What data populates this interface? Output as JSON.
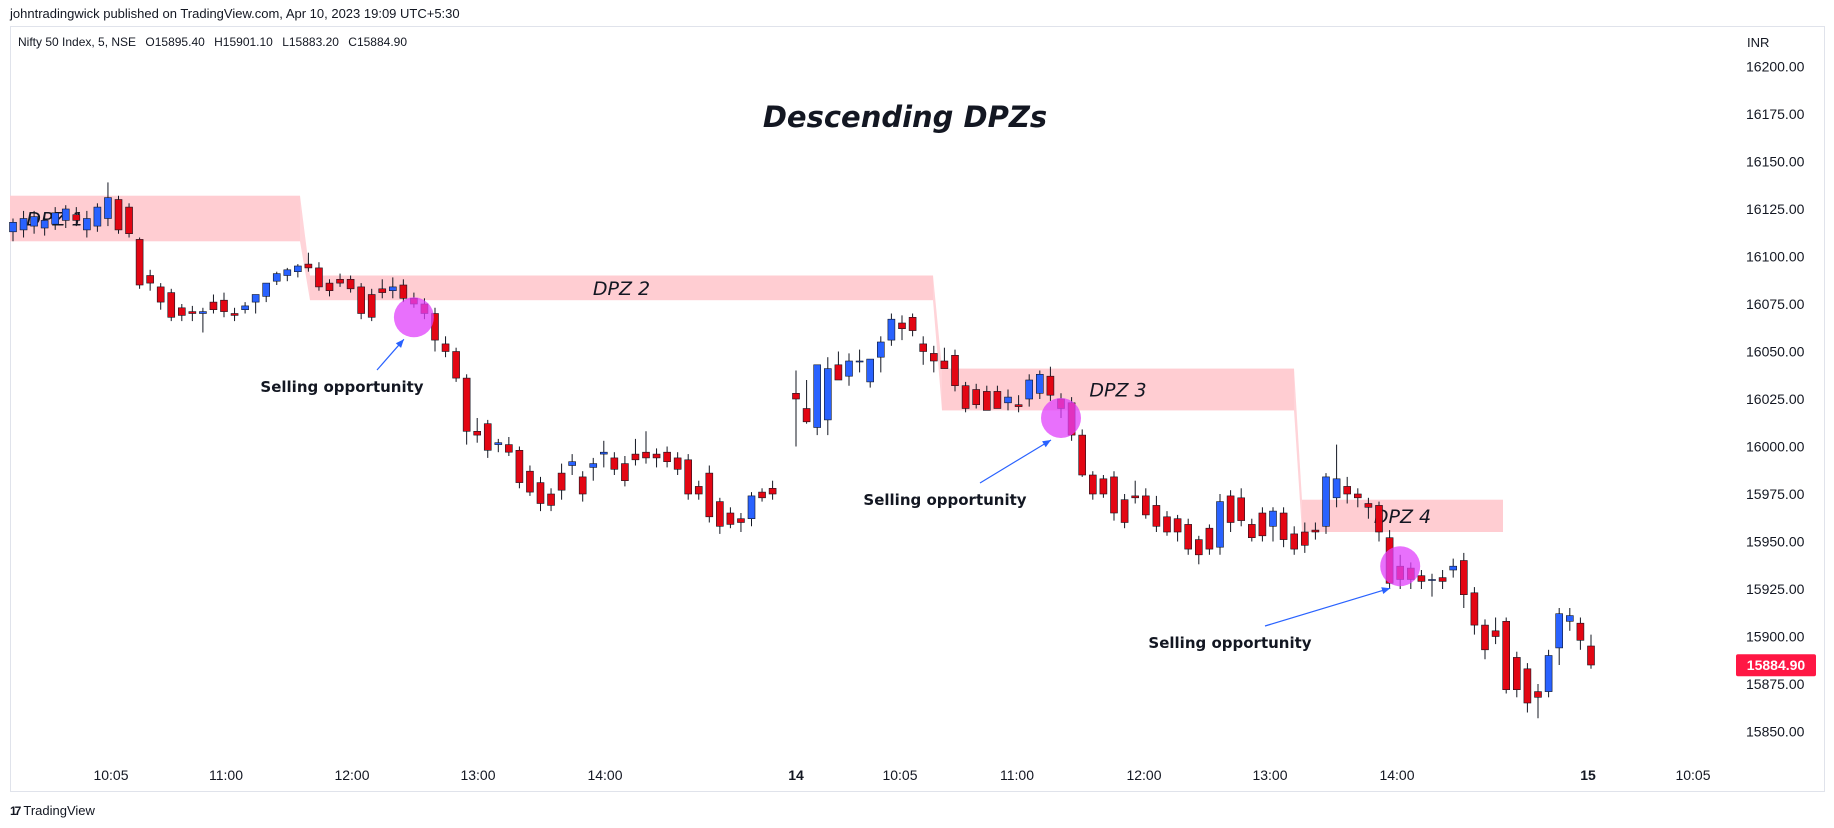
{
  "header": {
    "published": "johntradingwick published on TradingView.com, Apr 10, 2023 19:09 UTC+5:30",
    "symbol": "Nifty 50 Index, 5, NSE",
    "open": "O15895.40",
    "high": "H15901.10",
    "low": "L15883.20",
    "close": "C15884.90"
  },
  "footer": {
    "brand": "TradingView",
    "logo": "17"
  },
  "colors": {
    "up": "#2962ff",
    "down": "#e30613",
    "zone": "#ffcdd2",
    "circle": "#e040fb",
    "arrow": "#2962ff",
    "price_tag": "#ff1744"
  },
  "chart_data": {
    "type": "candlestick",
    "title": "Descending DPZs",
    "currency": "INR",
    "ylim": [
      15835,
      16215
    ],
    "y_ticks": [
      16200,
      16175,
      16150,
      16125,
      16100,
      16075,
      16050,
      16025,
      16000,
      15975,
      15950,
      15925,
      15900,
      15875,
      15850
    ],
    "last_price": "15884.90",
    "x_labels": [
      "10:05",
      "11:00",
      "12:00",
      "13:00",
      "14:00",
      "14",
      "10:05",
      "11:00",
      "12:00",
      "13:00",
      "14:00",
      "15",
      "10:05"
    ],
    "candles": [
      {
        "o": 16113,
        "h": 16120,
        "l": 16108,
        "c": 16118
      },
      {
        "o": 16114,
        "h": 16124,
        "l": 16110,
        "c": 16120
      },
      {
        "o": 16116,
        "h": 16124,
        "l": 16112,
        "c": 16121
      },
      {
        "o": 16115,
        "h": 16123,
        "l": 16111,
        "c": 16119
      },
      {
        "o": 16117,
        "h": 16126,
        "l": 16114,
        "c": 16123
      },
      {
        "o": 16119,
        "h": 16127,
        "l": 16115,
        "c": 16125
      },
      {
        "o": 16122,
        "h": 16126,
        "l": 16116,
        "c": 16119
      },
      {
        "o": 16114,
        "h": 16124,
        "l": 16110,
        "c": 16120
      },
      {
        "o": 16116,
        "h": 16128,
        "l": 16113,
        "c": 16126
      },
      {
        "o": 16120,
        "h": 16139,
        "l": 16116,
        "c": 16131
      },
      {
        "o": 16130,
        "h": 16132,
        "l": 16112,
        "c": 16114
      },
      {
        "o": 16126,
        "h": 16128,
        "l": 16110,
        "c": 16112
      },
      {
        "o": 16109,
        "h": 16110,
        "l": 16083,
        "c": 16085
      },
      {
        "o": 16090,
        "h": 16093,
        "l": 16082,
        "c": 16086
      },
      {
        "o": 16084,
        "h": 16086,
        "l": 16072,
        "c": 16076
      },
      {
        "o": 16081,
        "h": 16083,
        "l": 16066,
        "c": 16068
      },
      {
        "o": 16073,
        "h": 16075,
        "l": 16066,
        "c": 16069
      },
      {
        "o": 16071,
        "h": 16074,
        "l": 16066,
        "c": 16070
      },
      {
        "o": 16070,
        "h": 16073,
        "l": 16060,
        "c": 16071
      },
      {
        "o": 16076,
        "h": 16080,
        "l": 16070,
        "c": 16072
      },
      {
        "o": 16077,
        "h": 16081,
        "l": 16068,
        "c": 16071
      },
      {
        "o": 16070,
        "h": 16073,
        "l": 16066,
        "c": 16069
      },
      {
        "o": 16072,
        "h": 16076,
        "l": 16070,
        "c": 16074
      },
      {
        "o": 16076,
        "h": 16080,
        "l": 16070,
        "c": 16080
      },
      {
        "o": 16079,
        "h": 16086,
        "l": 16076,
        "c": 16086
      },
      {
        "o": 16087,
        "h": 16092,
        "l": 16085,
        "c": 16091
      },
      {
        "o": 16090,
        "h": 16094,
        "l": 16087,
        "c": 16093
      },
      {
        "o": 16092,
        "h": 16096,
        "l": 16089,
        "c": 16095
      },
      {
        "o": 16096,
        "h": 16102,
        "l": 16092,
        "c": 16094
      },
      {
        "o": 16094,
        "h": 16097,
        "l": 16082,
        "c": 16084
      },
      {
        "o": 16086,
        "h": 16088,
        "l": 16079,
        "c": 16082
      },
      {
        "o": 16088,
        "h": 16091,
        "l": 16084,
        "c": 16086
      },
      {
        "o": 16088,
        "h": 16090,
        "l": 16081,
        "c": 16083
      },
      {
        "o": 16084,
        "h": 16086,
        "l": 16067,
        "c": 16070
      },
      {
        "o": 16080,
        "h": 16083,
        "l": 16066,
        "c": 16068
      },
      {
        "o": 16083,
        "h": 16088,
        "l": 16078,
        "c": 16081
      },
      {
        "o": 16082,
        "h": 16089,
        "l": 16078,
        "c": 16084
      },
      {
        "o": 16085,
        "h": 16088,
        "l": 16076,
        "c": 16078
      },
      {
        "o": 16078,
        "h": 16081,
        "l": 16073,
        "c": 16075
      },
      {
        "o": 16075,
        "h": 16078,
        "l": 16067,
        "c": 16070
      },
      {
        "o": 16070,
        "h": 16073,
        "l": 16050,
        "c": 16056
      },
      {
        "o": 16054,
        "h": 16058,
        "l": 16047,
        "c": 16050
      },
      {
        "o": 16050,
        "h": 16052,
        "l": 16034,
        "c": 16036
      },
      {
        "o": 16036,
        "h": 16038,
        "l": 16001,
        "c": 16008
      },
      {
        "o": 16008,
        "h": 16015,
        "l": 16002,
        "c": 16006
      },
      {
        "o": 16012,
        "h": 16014,
        "l": 15994,
        "c": 15998
      },
      {
        "o": 16001,
        "h": 16004,
        "l": 15997,
        "c": 16002
      },
      {
        "o": 16001,
        "h": 16005,
        "l": 15995,
        "c": 15997
      },
      {
        "o": 15998,
        "h": 16000,
        "l": 15978,
        "c": 15981
      },
      {
        "o": 15987,
        "h": 15990,
        "l": 15974,
        "c": 15976
      },
      {
        "o": 15981,
        "h": 15984,
        "l": 15966,
        "c": 15970
      },
      {
        "o": 15975,
        "h": 15978,
        "l": 15966,
        "c": 15969
      },
      {
        "o": 15986,
        "h": 15991,
        "l": 15972,
        "c": 15977
      },
      {
        "o": 15990,
        "h": 15996,
        "l": 15985,
        "c": 15992
      },
      {
        "o": 15984,
        "h": 15987,
        "l": 15971,
        "c": 15975
      },
      {
        "o": 15989,
        "h": 15994,
        "l": 15982,
        "c": 15991
      },
      {
        "o": 15996,
        "h": 16003,
        "l": 15989,
        "c": 15997
      },
      {
        "o": 15994,
        "h": 15997,
        "l": 15985,
        "c": 15988
      },
      {
        "o": 15991,
        "h": 15995,
        "l": 15979,
        "c": 15982
      },
      {
        "o": 15996,
        "h": 16004,
        "l": 15990,
        "c": 15993
      },
      {
        "o": 15997,
        "h": 16008,
        "l": 15991,
        "c": 15994
      },
      {
        "o": 15996,
        "h": 15999,
        "l": 15989,
        "c": 15994
      },
      {
        "o": 15997,
        "h": 16000,
        "l": 15989,
        "c": 15992
      },
      {
        "o": 15994,
        "h": 15997,
        "l": 15985,
        "c": 15988
      },
      {
        "o": 15993,
        "h": 15996,
        "l": 15972,
        "c": 15975
      },
      {
        "o": 15979,
        "h": 15982,
        "l": 15972,
        "c": 15975
      },
      {
        "o": 15986,
        "h": 15990,
        "l": 15960,
        "c": 15963
      },
      {
        "o": 15971,
        "h": 15973,
        "l": 15954,
        "c": 15958
      },
      {
        "o": 15965,
        "h": 15968,
        "l": 15957,
        "c": 15959
      },
      {
        "o": 15962,
        "h": 15965,
        "l": 15955,
        "c": 15960
      },
      {
        "o": 15962,
        "h": 15976,
        "l": 15958,
        "c": 15974
      },
      {
        "o": 15976,
        "h": 15978,
        "l": 15971,
        "c": 15973
      },
      {
        "o": 15978,
        "h": 15982,
        "l": 15972,
        "c": 15975
      },
      {
        "o": 16028,
        "h": 16040,
        "l": 16000,
        "c": 16025
      },
      {
        "o": 16020,
        "h": 16035,
        "l": 16012,
        "c": 16013
      },
      {
        "o": 16010,
        "h": 16042,
        "l": 16006,
        "c": 16043
      },
      {
        "o": 16014,
        "h": 16047,
        "l": 16006,
        "c": 16041
      },
      {
        "o": 16043,
        "h": 16050,
        "l": 16035,
        "c": 16035
      },
      {
        "o": 16037,
        "h": 16049,
        "l": 16032,
        "c": 16045
      },
      {
        "o": 16045,
        "h": 16051,
        "l": 16039,
        "c": 16045
      },
      {
        "o": 16034,
        "h": 16045,
        "l": 16031,
        "c": 16046
      },
      {
        "o": 16047,
        "h": 16058,
        "l": 16039,
        "c": 16055
      },
      {
        "o": 16056,
        "h": 16070,
        "l": 16053,
        "c": 16067
      },
      {
        "o": 16065,
        "h": 16069,
        "l": 16056,
        "c": 16062
      },
      {
        "o": 16068,
        "h": 16070,
        "l": 16058,
        "c": 16061
      },
      {
        "o": 16054,
        "h": 16058,
        "l": 16043,
        "c": 16050
      },
      {
        "o": 16049,
        "h": 16053,
        "l": 16039,
        "c": 16045
      },
      {
        "o": 16045,
        "h": 16052,
        "l": 16041,
        "c": 16041
      },
      {
        "o": 16048,
        "h": 16051,
        "l": 16029,
        "c": 16032
      },
      {
        "o": 16032,
        "h": 16034,
        "l": 16018,
        "c": 16020
      },
      {
        "o": 16030,
        "h": 16033,
        "l": 16020,
        "c": 16022
      },
      {
        "o": 16029,
        "h": 16032,
        "l": 16020,
        "c": 16019
      },
      {
        "o": 16029,
        "h": 16032,
        "l": 16020,
        "c": 16020
      },
      {
        "o": 16023,
        "h": 16030,
        "l": 16019,
        "c": 16026
      },
      {
        "o": 16022,
        "h": 16027,
        "l": 16018,
        "c": 16021
      },
      {
        "o": 16025,
        "h": 16038,
        "l": 16021,
        "c": 16035
      },
      {
        "o": 16028,
        "h": 16040,
        "l": 16025,
        "c": 16038
      },
      {
        "o": 16037,
        "h": 16042,
        "l": 16024,
        "c": 16027
      },
      {
        "o": 16025,
        "h": 16028,
        "l": 16015,
        "c": 16020
      },
      {
        "o": 16023,
        "h": 16026,
        "l": 16003,
        "c": 16006
      },
      {
        "o": 16006,
        "h": 16009,
        "l": 15984,
        "c": 15985
      },
      {
        "o": 15985,
        "h": 15987,
        "l": 15972,
        "c": 15975
      },
      {
        "o": 15983,
        "h": 15985,
        "l": 15973,
        "c": 15975
      },
      {
        "o": 15984,
        "h": 15987,
        "l": 15961,
        "c": 15965
      },
      {
        "o": 15972,
        "h": 15975,
        "l": 15957,
        "c": 15960
      },
      {
        "o": 15974,
        "h": 15982,
        "l": 15970,
        "c": 15973
      },
      {
        "o": 15974,
        "h": 15978,
        "l": 15962,
        "c": 15964
      },
      {
        "o": 15969,
        "h": 15974,
        "l": 15955,
        "c": 15958
      },
      {
        "o": 15963,
        "h": 15966,
        "l": 15953,
        "c": 15955
      },
      {
        "o": 15962,
        "h": 15964,
        "l": 15950,
        "c": 15955
      },
      {
        "o": 15959,
        "h": 15962,
        "l": 15943,
        "c": 15946
      },
      {
        "o": 15951,
        "h": 15953,
        "l": 15938,
        "c": 15943
      },
      {
        "o": 15957,
        "h": 15959,
        "l": 15943,
        "c": 15946
      },
      {
        "o": 15947,
        "h": 15975,
        "l": 15943,
        "c": 15971
      },
      {
        "o": 15974,
        "h": 15977,
        "l": 15955,
        "c": 15960
      },
      {
        "o": 15973,
        "h": 15978,
        "l": 15958,
        "c": 15961
      },
      {
        "o": 15959,
        "h": 15962,
        "l": 15950,
        "c": 15952
      },
      {
        "o": 15965,
        "h": 15968,
        "l": 15950,
        "c": 15953
      },
      {
        "o": 15958,
        "h": 15968,
        "l": 15950,
        "c": 15966
      },
      {
        "o": 15965,
        "h": 15968,
        "l": 15947,
        "c": 15951
      },
      {
        "o": 15954,
        "h": 15958,
        "l": 15943,
        "c": 15946
      },
      {
        "o": 15955,
        "h": 15960,
        "l": 15944,
        "c": 15948
      },
      {
        "o": 15956,
        "h": 15960,
        "l": 15951,
        "c": 15955
      },
      {
        "o": 15958,
        "h": 15986,
        "l": 15954,
        "c": 15984
      },
      {
        "o": 15973,
        "h": 16001,
        "l": 15968,
        "c": 15983
      },
      {
        "o": 15979,
        "h": 15984,
        "l": 15970,
        "c": 15975
      },
      {
        "o": 15975,
        "h": 15978,
        "l": 15968,
        "c": 15973
      },
      {
        "o": 15970,
        "h": 15973,
        "l": 15962,
        "c": 15968
      },
      {
        "o": 15969,
        "h": 15971,
        "l": 15950,
        "c": 15955
      },
      {
        "o": 15952,
        "h": 15956,
        "l": 15925,
        "c": 15928
      },
      {
        "o": 15937,
        "h": 15943,
        "l": 15925,
        "c": 15930
      },
      {
        "o": 15936,
        "h": 15939,
        "l": 15925,
        "c": 15930
      },
      {
        "o": 15932,
        "h": 15935,
        "l": 15925,
        "c": 15929
      },
      {
        "o": 15930,
        "h": 15933,
        "l": 15921,
        "c": 15930
      },
      {
        "o": 15931,
        "h": 15935,
        "l": 15925,
        "c": 15929
      },
      {
        "o": 15935,
        "h": 15941,
        "l": 15931,
        "c": 15937
      },
      {
        "o": 15940,
        "h": 15944,
        "l": 15915,
        "c": 15922
      },
      {
        "o": 15923,
        "h": 15926,
        "l": 15901,
        "c": 15906
      },
      {
        "o": 15906,
        "h": 15909,
        "l": 15888,
        "c": 15893
      },
      {
        "o": 15903,
        "h": 15910,
        "l": 15896,
        "c": 15900
      },
      {
        "o": 15908,
        "h": 15910,
        "l": 15870,
        "c": 15872
      },
      {
        "o": 15889,
        "h": 15892,
        "l": 15868,
        "c": 15872
      },
      {
        "o": 15883,
        "h": 15886,
        "l": 15860,
        "c": 15865
      },
      {
        "o": 15871,
        "h": 15875,
        "l": 15857,
        "c": 15868
      },
      {
        "o": 15871,
        "h": 15893,
        "l": 15868,
        "c": 15890
      },
      {
        "o": 15894,
        "h": 15915,
        "l": 15885,
        "c": 15912
      },
      {
        "o": 15908,
        "h": 15915,
        "l": 15903,
        "c": 15911
      },
      {
        "o": 15907,
        "h": 15910,
        "l": 15893,
        "c": 15898
      },
      {
        "o": 15895,
        "h": 15901,
        "l": 15883,
        "c": 15885
      }
    ],
    "zones": [
      {
        "label": "DPZ 1",
        "from": 16108,
        "to": 16132
      },
      {
        "label": "DPZ 2",
        "from": 16077,
        "to": 16090
      },
      {
        "label": "DPZ 3",
        "from": 16019,
        "to": 16041
      },
      {
        "label": "DPZ 4",
        "from": 15955,
        "to": 15972
      }
    ],
    "annotations": [
      {
        "text": "Selling opportunity",
        "target_candle": 38,
        "target_price": 16068
      },
      {
        "text": "Selling opportunity",
        "target_candle": 98,
        "target_price": 16015
      },
      {
        "text": "Selling opportunity",
        "target_candle": 130,
        "target_price": 15937
      }
    ]
  }
}
